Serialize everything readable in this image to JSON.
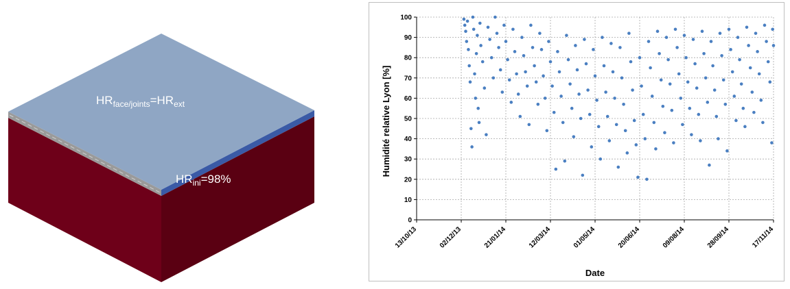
{
  "left_figure": {
    "colors": {
      "top": "#8fa6c4",
      "blue_layer": "#3a5aa6",
      "grey_layer": "#9a9a9a",
      "front": "#6e0019",
      "side": "#5a0012"
    },
    "top_label": {
      "base": "HR",
      "sub": "face/joints",
      "eq": "=HR",
      "sub2": "ext"
    },
    "initial_label": {
      "base": "HR",
      "sub": "ini",
      "eq": "=98%"
    }
  },
  "chart_data": {
    "type": "scatter",
    "ylabel": "Humidité relative Lyon [%]",
    "xlabel": "Date",
    "ylim": [
      0,
      100
    ],
    "yticks": [
      0,
      10,
      20,
      30,
      40,
      50,
      60,
      70,
      80,
      90,
      100
    ],
    "xlim": [
      "2013-10-13",
      "2014-11-17"
    ],
    "xticks": [
      "13/10/13",
      "02/12/13",
      "21/01/14",
      "12/03/14",
      "01/05/14",
      "20/06/14",
      "09/08/14",
      "28/09/14",
      "17/11/14"
    ],
    "grid": true,
    "marker_color": "#4a7fc1",
    "series": [
      {
        "points": [
          [
            "2013-12-05",
            99
          ],
          [
            "2013-12-06",
            96
          ],
          [
            "2013-12-07",
            93
          ],
          [
            "2013-12-08",
            88
          ],
          [
            "2013-12-09",
            98
          ],
          [
            "2013-12-10",
            84
          ],
          [
            "2013-12-11",
            76
          ],
          [
            "2013-12-12",
            68
          ],
          [
            "2013-12-13",
            45
          ],
          [
            "2013-12-14",
            36
          ],
          [
            "2013-12-15",
            100
          ],
          [
            "2013-12-16",
            94
          ],
          [
            "2013-12-17",
            72
          ],
          [
            "2013-12-18",
            60
          ],
          [
            "2013-12-19",
            82
          ],
          [
            "2013-12-20",
            91
          ],
          [
            "2013-12-21",
            55
          ],
          [
            "2013-12-22",
            48
          ],
          [
            "2013-12-23",
            97
          ],
          [
            "2013-12-24",
            86
          ],
          [
            "2013-12-26",
            78
          ],
          [
            "2013-12-28",
            65
          ],
          [
            "2013-12-30",
            42
          ],
          [
            "2014-01-01",
            95
          ],
          [
            "2014-01-03",
            89
          ],
          [
            "2014-01-05",
            80
          ],
          [
            "2014-01-07",
            70
          ],
          [
            "2014-01-09",
            100
          ],
          [
            "2014-01-11",
            92
          ],
          [
            "2014-01-13",
            85
          ],
          [
            "2014-01-15",
            74
          ],
          [
            "2014-01-17",
            63
          ],
          [
            "2014-01-19",
            96
          ],
          [
            "2014-01-21",
            88
          ],
          [
            "2014-01-23",
            79
          ],
          [
            "2014-01-25",
            69
          ],
          [
            "2014-01-27",
            58
          ],
          [
            "2014-01-29",
            94
          ],
          [
            "2014-01-31",
            83
          ],
          [
            "2014-02-02",
            72
          ],
          [
            "2014-02-04",
            62
          ],
          [
            "2014-02-06",
            51
          ],
          [
            "2014-02-08",
            90
          ],
          [
            "2014-02-10",
            81
          ],
          [
            "2014-02-12",
            73
          ],
          [
            "2014-02-14",
            66
          ],
          [
            "2014-02-16",
            47
          ],
          [
            "2014-02-18",
            96
          ],
          [
            "2014-02-20",
            85
          ],
          [
            "2014-02-22",
            76
          ],
          [
            "2014-02-24",
            68
          ],
          [
            "2014-02-26",
            57
          ],
          [
            "2014-02-28",
            92
          ],
          [
            "2014-03-02",
            84
          ],
          [
            "2014-03-04",
            71
          ],
          [
            "2014-03-06",
            60
          ],
          [
            "2014-03-08",
            44
          ],
          [
            "2014-03-10",
            88
          ],
          [
            "2014-03-12",
            78
          ],
          [
            "2014-03-14",
            66
          ],
          [
            "2014-03-16",
            53
          ],
          [
            "2014-03-18",
            25
          ],
          [
            "2014-03-20",
            83
          ],
          [
            "2014-03-22",
            73
          ],
          [
            "2014-03-24",
            61
          ],
          [
            "2014-03-26",
            48
          ],
          [
            "2014-03-28",
            29
          ],
          [
            "2014-03-30",
            91
          ],
          [
            "2014-04-01",
            79
          ],
          [
            "2014-04-03",
            67
          ],
          [
            "2014-04-05",
            55
          ],
          [
            "2014-04-07",
            41
          ],
          [
            "2014-04-09",
            86
          ],
          [
            "2014-04-11",
            74
          ],
          [
            "2014-04-13",
            62
          ],
          [
            "2014-04-15",
            50
          ],
          [
            "2014-04-17",
            22
          ],
          [
            "2014-04-19",
            89
          ],
          [
            "2014-04-21",
            77
          ],
          [
            "2014-04-23",
            64
          ],
          [
            "2014-04-25",
            52
          ],
          [
            "2014-04-27",
            36
          ],
          [
            "2014-04-29",
            84
          ],
          [
            "2014-05-01",
            71
          ],
          [
            "2014-05-03",
            59
          ],
          [
            "2014-05-05",
            46
          ],
          [
            "2014-05-07",
            30
          ],
          [
            "2014-05-09",
            90
          ],
          [
            "2014-05-11",
            76
          ],
          [
            "2014-05-13",
            63
          ],
          [
            "2014-05-15",
            51
          ],
          [
            "2014-05-17",
            39
          ],
          [
            "2014-05-19",
            87
          ],
          [
            "2014-05-21",
            73
          ],
          [
            "2014-05-23",
            60
          ],
          [
            "2014-05-25",
            47
          ],
          [
            "2014-05-27",
            26
          ],
          [
            "2014-05-29",
            85
          ],
          [
            "2014-05-31",
            70
          ],
          [
            "2014-06-02",
            57
          ],
          [
            "2014-06-04",
            44
          ],
          [
            "2014-06-06",
            33
          ],
          [
            "2014-06-08",
            92
          ],
          [
            "2014-06-10",
            78
          ],
          [
            "2014-06-12",
            64
          ],
          [
            "2014-06-14",
            49
          ],
          [
            "2014-06-16",
            37
          ],
          [
            "2014-06-18",
            21
          ],
          [
            "2014-06-20",
            80
          ],
          [
            "2014-06-22",
            66
          ],
          [
            "2014-06-24",
            52
          ],
          [
            "2014-06-26",
            40
          ],
          [
            "2014-06-28",
            20
          ],
          [
            "2014-06-30",
            88
          ],
          [
            "2014-07-02",
            75
          ],
          [
            "2014-07-04",
            61
          ],
          [
            "2014-07-06",
            48
          ],
          [
            "2014-07-08",
            35
          ],
          [
            "2014-07-10",
            93
          ],
          [
            "2014-07-12",
            82
          ],
          [
            "2014-07-14",
            69
          ],
          [
            "2014-07-16",
            56
          ],
          [
            "2014-07-18",
            43
          ],
          [
            "2014-07-20",
            90
          ],
          [
            "2014-07-22",
            79
          ],
          [
            "2014-07-24",
            67
          ],
          [
            "2014-07-26",
            54
          ],
          [
            "2014-07-28",
            38
          ],
          [
            "2014-07-30",
            94
          ],
          [
            "2014-08-01",
            85
          ],
          [
            "2014-08-03",
            72
          ],
          [
            "2014-08-05",
            60
          ],
          [
            "2014-08-07",
            47
          ],
          [
            "2014-08-09",
            91
          ],
          [
            "2014-08-11",
            80
          ],
          [
            "2014-08-13",
            68
          ],
          [
            "2014-08-15",
            55
          ],
          [
            "2014-08-17",
            42
          ],
          [
            "2014-08-19",
            89
          ],
          [
            "2014-08-21",
            77
          ],
          [
            "2014-08-23",
            65
          ],
          [
            "2014-08-25",
            52
          ],
          [
            "2014-08-27",
            39
          ],
          [
            "2014-08-29",
            93
          ],
          [
            "2014-08-31",
            82
          ],
          [
            "2014-09-02",
            70
          ],
          [
            "2014-09-04",
            58
          ],
          [
            "2014-09-06",
            27
          ],
          [
            "2014-09-08",
            88
          ],
          [
            "2014-09-10",
            76
          ],
          [
            "2014-09-12",
            64
          ],
          [
            "2014-09-14",
            51
          ],
          [
            "2014-09-16",
            40
          ],
          [
            "2014-09-18",
            92
          ],
          [
            "2014-09-20",
            81
          ],
          [
            "2014-09-22",
            69
          ],
          [
            "2014-09-24",
            57
          ],
          [
            "2014-09-26",
            34
          ],
          [
            "2014-09-28",
            94
          ],
          [
            "2014-09-30",
            84
          ],
          [
            "2014-10-02",
            73
          ],
          [
            "2014-10-04",
            61
          ],
          [
            "2014-10-06",
            49
          ],
          [
            "2014-10-08",
            90
          ],
          [
            "2014-10-10",
            79
          ],
          [
            "2014-10-12",
            67
          ],
          [
            "2014-10-14",
            55
          ],
          [
            "2014-10-16",
            46
          ],
          [
            "2014-10-18",
            95
          ],
          [
            "2014-10-20",
            86
          ],
          [
            "2014-10-22",
            75
          ],
          [
            "2014-10-24",
            63
          ],
          [
            "2014-10-26",
            53
          ],
          [
            "2014-10-28",
            92
          ],
          [
            "2014-10-30",
            83
          ],
          [
            "2014-11-01",
            72
          ],
          [
            "2014-11-03",
            59
          ],
          [
            "2014-11-05",
            48
          ],
          [
            "2014-11-07",
            96
          ],
          [
            "2014-11-09",
            88
          ],
          [
            "2014-11-11",
            78
          ],
          [
            "2014-11-13",
            68
          ],
          [
            "2014-11-15",
            38
          ],
          [
            "2014-11-16",
            94
          ],
          [
            "2014-11-17",
            86
          ]
        ]
      }
    ]
  }
}
